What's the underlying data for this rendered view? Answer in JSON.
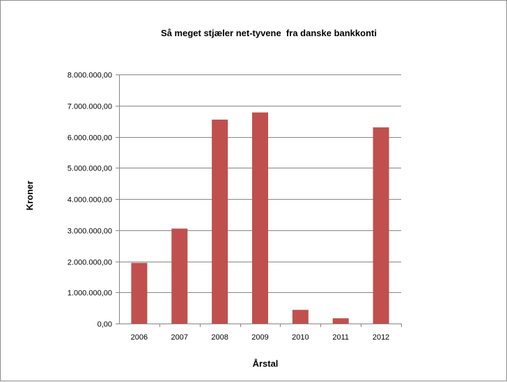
{
  "chart_data": {
    "type": "bar",
    "title": "Så meget stjæler net-tyvene  fra danske bankkonti",
    "xlabel": "Årstal",
    "ylabel": "Kroner",
    "categories": [
      "2006",
      "2007",
      "2008",
      "2009",
      "2010",
      "2011",
      "2012"
    ],
    "values": [
      1950000,
      3050000,
      6550000,
      6780000,
      440000,
      170000,
      6300000
    ],
    "ylim": [
      0,
      8000000
    ],
    "yticks": [
      0,
      1000000,
      2000000,
      3000000,
      4000000,
      5000000,
      6000000,
      7000000,
      8000000
    ],
    "ytick_labels": [
      "0,00",
      "1.000.000,00",
      "2.000.000,00",
      "3.000.000,00",
      "4.000.000,00",
      "5.000.000,00",
      "6.000.000,00",
      "7.000.000,00",
      "8.000.000,00"
    ],
    "grid": true,
    "legend": "none",
    "bar_color": "#c0504d"
  }
}
